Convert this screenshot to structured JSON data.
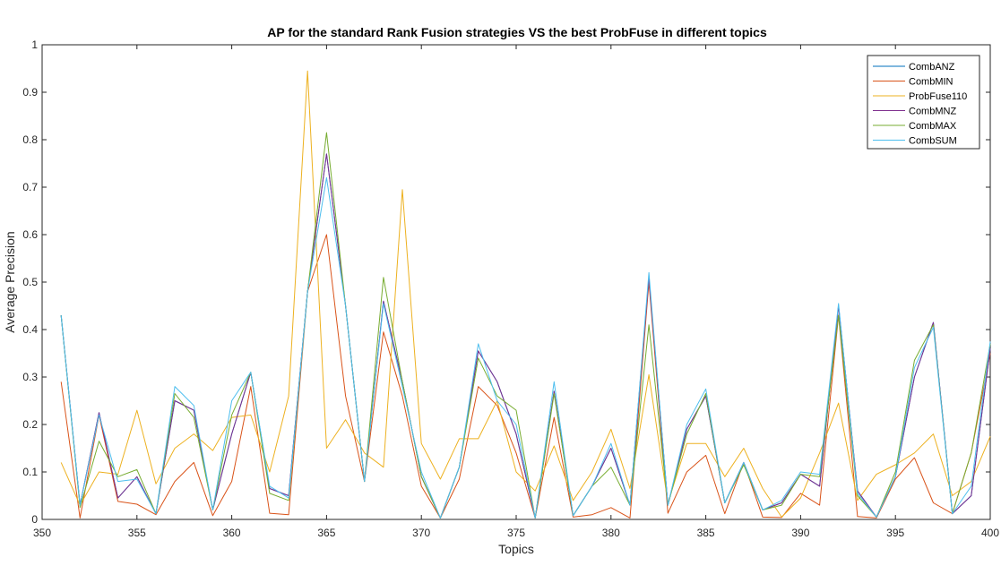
{
  "chart_data": {
    "type": "line",
    "title": "AP for the standard Rank Fusion strategies VS the best ProbFuse in different topics",
    "xlabel": "Topics",
    "ylabel": "Average Precision",
    "xlim": [
      350,
      400
    ],
    "ylim": [
      0,
      1
    ],
    "xticks": [
      "350",
      "355",
      "360",
      "365",
      "370",
      "375",
      "380",
      "385",
      "390",
      "395",
      "400"
    ],
    "yticks": [
      "0",
      "0.1",
      "0.2",
      "0.3",
      "0.4",
      "0.5",
      "0.6",
      "0.7",
      "0.8",
      "0.9",
      "1"
    ],
    "legend_position": "top-right",
    "grid": false,
    "x": [
      351,
      352,
      353,
      354,
      355,
      356,
      357,
      358,
      359,
      360,
      361,
      362,
      363,
      364,
      365,
      366,
      367,
      368,
      369,
      370,
      371,
      372,
      373,
      374,
      375,
      376,
      377,
      378,
      379,
      380,
      381,
      382,
      383,
      384,
      385,
      386,
      387,
      388,
      389,
      390,
      391,
      392,
      393,
      394,
      395,
      396,
      397,
      398,
      399,
      400
    ],
    "series": [
      {
        "name": "CombANZ",
        "color": "#0072BD",
        "values": [
          0.43,
          0.03,
          0.225,
          0.045,
          0.09,
          0.012,
          0.25,
          0.23,
          0.02,
          0.18,
          0.31,
          0.065,
          0.05,
          0.48,
          0.77,
          0.45,
          0.08,
          0.46,
          0.29,
          0.09,
          0.003,
          0.11,
          0.355,
          0.29,
          0.18,
          0.003,
          0.27,
          0.008,
          0.07,
          0.15,
          0.03,
          0.51,
          0.03,
          0.19,
          0.26,
          0.035,
          0.12,
          0.02,
          0.035,
          0.095,
          0.07,
          0.45,
          0.06,
          0.005,
          0.09,
          0.3,
          0.415,
          0.012,
          0.05,
          0.36
        ]
      },
      {
        "name": "CombMIN",
        "color": "#D95319",
        "values": [
          0.29,
          0.003,
          0.22,
          0.038,
          0.032,
          0.01,
          0.08,
          0.12,
          0.008,
          0.08,
          0.28,
          0.013,
          0.01,
          0.48,
          0.6,
          0.26,
          0.08,
          0.395,
          0.26,
          0.07,
          0.003,
          0.085,
          0.28,
          0.24,
          0.14,
          0.003,
          0.215,
          0.005,
          0.01,
          0.025,
          0.003,
          0.5,
          0.013,
          0.1,
          0.135,
          0.012,
          0.12,
          0.005,
          0.004,
          0.055,
          0.03,
          0.43,
          0.006,
          0.003,
          0.085,
          0.13,
          0.035,
          0.012,
          0.14,
          0.35
        ]
      },
      {
        "name": "ProbFuse110",
        "color": "#EDB120",
        "values": [
          0.12,
          0.03,
          0.1,
          0.095,
          0.23,
          0.075,
          0.15,
          0.18,
          0.145,
          0.215,
          0.22,
          0.1,
          0.26,
          0.945,
          0.15,
          0.21,
          0.14,
          0.11,
          0.695,
          0.16,
          0.085,
          0.17,
          0.17,
          0.25,
          0.1,
          0.06,
          0.155,
          0.04,
          0.1,
          0.19,
          0.065,
          0.305,
          0.035,
          0.16,
          0.16,
          0.09,
          0.15,
          0.065,
          0.005,
          0.045,
          0.14,
          0.245,
          0.04,
          0.095,
          0.115,
          0.14,
          0.18,
          0.05,
          0.08,
          0.175
        ]
      },
      {
        "name": "CombMNZ",
        "color": "#7E2F8E",
        "values": [
          0.43,
          0.03,
          0.225,
          0.045,
          0.09,
          0.012,
          0.25,
          0.23,
          0.02,
          0.18,
          0.31,
          0.065,
          0.05,
          0.48,
          0.77,
          0.45,
          0.08,
          0.46,
          0.29,
          0.09,
          0.003,
          0.11,
          0.355,
          0.29,
          0.18,
          0.003,
          0.27,
          0.008,
          0.07,
          0.15,
          0.03,
          0.51,
          0.03,
          0.19,
          0.26,
          0.035,
          0.12,
          0.02,
          0.035,
          0.095,
          0.07,
          0.45,
          0.06,
          0.005,
          0.09,
          0.3,
          0.415,
          0.012,
          0.05,
          0.36
        ]
      },
      {
        "name": "CombMAX",
        "color": "#77AC30",
        "values": [
          0.43,
          0.025,
          0.165,
          0.09,
          0.105,
          0.012,
          0.265,
          0.215,
          0.02,
          0.22,
          0.31,
          0.055,
          0.04,
          0.48,
          0.815,
          0.45,
          0.08,
          0.51,
          0.29,
          0.09,
          0.003,
          0.11,
          0.34,
          0.26,
          0.23,
          0.003,
          0.265,
          0.008,
          0.07,
          0.11,
          0.03,
          0.41,
          0.03,
          0.18,
          0.265,
          0.035,
          0.115,
          0.02,
          0.03,
          0.095,
          0.09,
          0.43,
          0.05,
          0.005,
          0.1,
          0.335,
          0.41,
          0.012,
          0.14,
          0.37
        ]
      },
      {
        "name": "CombSUM",
        "color": "#4DBEEE",
        "values": [
          0.43,
          0.03,
          0.22,
          0.08,
          0.085,
          0.012,
          0.28,
          0.24,
          0.02,
          0.25,
          0.31,
          0.07,
          0.045,
          0.48,
          0.72,
          0.45,
          0.08,
          0.455,
          0.28,
          0.1,
          0.003,
          0.11,
          0.37,
          0.25,
          0.2,
          0.003,
          0.29,
          0.008,
          0.07,
          0.16,
          0.03,
          0.52,
          0.03,
          0.2,
          0.275,
          0.035,
          0.12,
          0.02,
          0.04,
          0.1,
          0.095,
          0.455,
          0.055,
          0.005,
          0.09,
          0.32,
          0.405,
          0.012,
          0.07,
          0.375
        ]
      }
    ]
  }
}
